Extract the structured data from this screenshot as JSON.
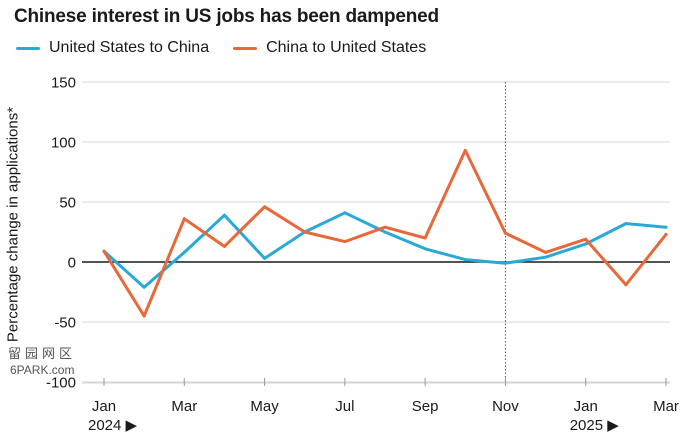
{
  "chart_data": {
    "type": "line",
    "title": "Chinese interest in US jobs has been dampened",
    "ylabel": "Percentage change in applications*",
    "xlabel": "",
    "ylim": [
      -100,
      150
    ],
    "yticks": [
      150,
      100,
      50,
      0,
      -50,
      -100
    ],
    "ytick_labels": [
      "150",
      "100",
      "50",
      "0",
      "-50",
      "-100"
    ],
    "grid": true,
    "legend_position": "top-left",
    "x": [
      "Jan 2024",
      "Feb 2024",
      "Mar 2024",
      "Apr 2024",
      "May 2024",
      "Jun 2024",
      "Jul 2024",
      "Aug 2024",
      "Sep 2024",
      "Oct 2024",
      "Nov 2024",
      "Dec 2024",
      "Jan 2025",
      "Feb 2025",
      "Mar 2025"
    ],
    "xtick_labels": [
      "Jan",
      "Mar",
      "May",
      "Jul",
      "Sep",
      "Nov",
      "Jan",
      "Mar"
    ],
    "xtick_indices": [
      0,
      2,
      4,
      6,
      8,
      10,
      12,
      14
    ],
    "year_labels": [
      {
        "label": "2024 ▶",
        "index": 0
      },
      {
        "label": "2025 ▶",
        "index": 12
      }
    ],
    "reference_line_index": 10,
    "series": [
      {
        "name": "United States to China",
        "color": "#29a9d6",
        "values": [
          9,
          -21,
          8,
          39,
          3,
          25,
          41,
          25,
          11,
          2,
          -1,
          4,
          15,
          32,
          29
        ]
      },
      {
        "name": "China to United States",
        "color": "#e8683a",
        "values": [
          9,
          -45,
          36,
          13,
          46,
          25,
          17,
          29,
          20,
          93,
          24,
          8,
          19,
          -19,
          23
        ]
      }
    ]
  },
  "watermark": {
    "line1": "留园网区",
    "line2": "6PARK.com"
  }
}
